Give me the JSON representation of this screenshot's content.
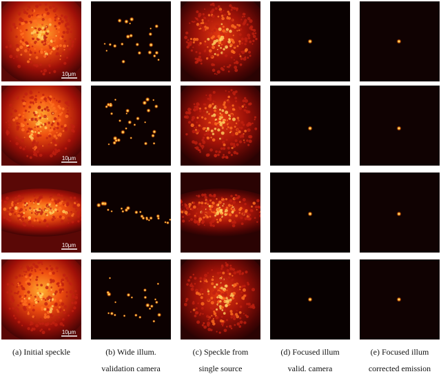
{
  "scale_bar_label": "10μm",
  "captions": [
    {
      "lines": [
        "(a) Initial speckle"
      ]
    },
    {
      "lines": [
        "(b) Wide illum.",
        "validation camera"
      ]
    },
    {
      "lines": [
        "(c) Speckle from",
        "single source"
      ]
    },
    {
      "lines": [
        "(d) Focused illum",
        "valid. camera"
      ]
    },
    {
      "lines": [
        "(e) Focused illum",
        "corrected emission"
      ]
    }
  ]
}
